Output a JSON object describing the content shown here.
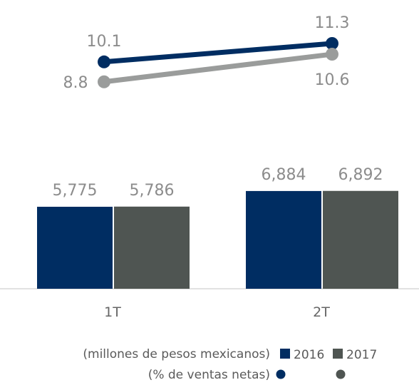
{
  "chart_data": {
    "type": "bar",
    "categories": [
      "1T",
      "2T"
    ],
    "bar_series": [
      {
        "name": "2016",
        "values": [
          5775,
          6884
        ],
        "labels": [
          "5,775",
          "6,884"
        ],
        "color": "#002d62"
      },
      {
        "name": "2017",
        "values": [
          5786,
          6892
        ],
        "labels": [
          "5,786",
          "6,892"
        ],
        "color": "#4f5552"
      }
    ],
    "line_series": [
      {
        "name": "2016",
        "values": [
          10.1,
          11.3
        ],
        "labels": [
          "10.1",
          "11.3"
        ],
        "color": "#002d62"
      },
      {
        "name": "2017",
        "values": [
          8.8,
          10.6
        ],
        "labels": [
          "8.8",
          "10.6"
        ],
        "color": "#9a9c9b"
      }
    ],
    "legend": {
      "bar_caption": "(millones de pesos mexicanos)",
      "line_caption": "(% de ventas netas)",
      "series_names": [
        "2016",
        "2017"
      ],
      "marker_colors": [
        "#002d62",
        "#4f5552"
      ]
    },
    "colors": {
      "label_text": "#8c8c8c",
      "axis_line": "#d0d0d0",
      "legend_text": "#5a5a5a"
    }
  }
}
